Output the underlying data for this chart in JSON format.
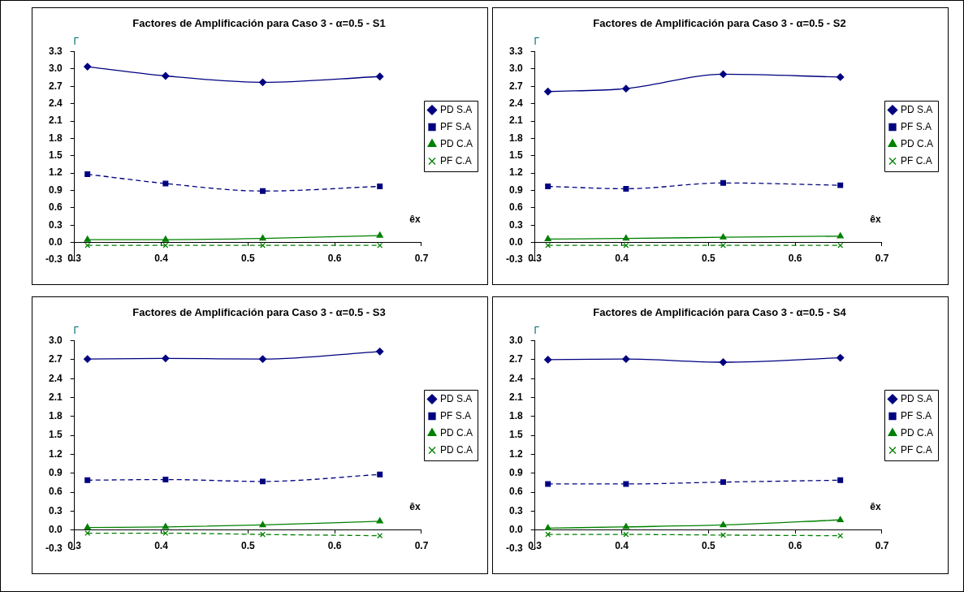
{
  "chart_data": [
    {
      "type": "line",
      "title": "Factores de Amplificación para Caso 3 - α=0.5 - S1",
      "xlabel": "êx",
      "ylabel": "Γ",
      "x": [
        0.315,
        0.405,
        0.517,
        0.652
      ],
      "xlim": [
        0.3,
        0.7
      ],
      "xticks": [
        0.3,
        0.4,
        0.5,
        0.6,
        0.7
      ],
      "ylim": [
        -0.3,
        3.3
      ],
      "yticks": [
        {
          "value": -0.3,
          "label": "-0.3"
        },
        {
          "value": 0,
          "label": "0.0"
        },
        {
          "value": 0.3,
          "label": "0.3"
        },
        {
          "value": 0.6,
          "label": "0.6"
        },
        {
          "value": 0.9,
          "label": "0.9"
        },
        {
          "value": 1.2,
          "label": "1.2"
        },
        {
          "value": 1.5,
          "label": "1.5"
        },
        {
          "value": 1.8,
          "label": "1.8"
        },
        {
          "value": 2.1,
          "label": "2.1"
        },
        {
          "value": 2.4,
          "label": "2.4"
        },
        {
          "value": 2.7,
          "label": "2.7"
        },
        {
          "value": 3.0,
          "label": "3.0"
        },
        {
          "value": 3.3,
          "label": "3.3"
        }
      ],
      "grid": false,
      "legend": "right",
      "series": [
        {
          "name": "PD S.A",
          "color": "#000080",
          "marker": "diamond",
          "line_style": "solid",
          "values": [
            3.04,
            2.88,
            2.77,
            2.87
          ]
        },
        {
          "name": "PF S.A",
          "color": "#000080",
          "marker": "square",
          "line_style": "dashed",
          "values": [
            1.18,
            1.02,
            0.89,
            0.97
          ]
        },
        {
          "name": "PD C.A",
          "color": "#008000",
          "marker": "triangle",
          "line_style": "solid",
          "values": [
            0.05,
            0.05,
            0.07,
            0.12
          ]
        },
        {
          "name": "PF C.A",
          "color": "#008000",
          "marker": "cross",
          "line_style": "dashed",
          "values": [
            -0.05,
            -0.05,
            -0.05,
            -0.05
          ]
        }
      ]
    },
    {
      "type": "line",
      "title": "Factores de Amplificación para Caso 3 - α=0.5 - S2",
      "xlabel": "êx",
      "ylabel": "Γ",
      "x": [
        0.315,
        0.405,
        0.517,
        0.652
      ],
      "xlim": [
        0.3,
        0.7
      ],
      "xticks": [
        0.3,
        0.4,
        0.5,
        0.6,
        0.7
      ],
      "ylim": [
        -0.3,
        3.3
      ],
      "yticks": [
        {
          "value": -0.3,
          "label": "-0.3"
        },
        {
          "value": 0,
          "label": "0.0"
        },
        {
          "value": 0.3,
          "label": "0.3"
        },
        {
          "value": 0.6,
          "label": "0.6"
        },
        {
          "value": 0.9,
          "label": "0.9"
        },
        {
          "value": 1.2,
          "label": "1.2"
        },
        {
          "value": 1.5,
          "label": "1.5"
        },
        {
          "value": 1.8,
          "label": "1.8"
        },
        {
          "value": 2.1,
          "label": "2.1"
        },
        {
          "value": 2.4,
          "label": "2.4"
        },
        {
          "value": 2.7,
          "label": "2.7"
        },
        {
          "value": 3.0,
          "label": "3.0"
        },
        {
          "value": 3.3,
          "label": "3.3"
        }
      ],
      "grid": false,
      "legend": "right",
      "series": [
        {
          "name": "PD S.A",
          "color": "#000080",
          "marker": "diamond",
          "line_style": "solid",
          "values": [
            2.61,
            2.66,
            2.91,
            2.86
          ]
        },
        {
          "name": "PF S.A",
          "color": "#000080",
          "marker": "square",
          "line_style": "dashed",
          "values": [
            0.97,
            0.93,
            1.03,
            0.99
          ]
        },
        {
          "name": "PD C.A",
          "color": "#008000",
          "marker": "triangle",
          "line_style": "solid",
          "values": [
            0.06,
            0.07,
            0.09,
            0.11
          ]
        },
        {
          "name": "PF C.A",
          "color": "#008000",
          "marker": "cross",
          "line_style": "dashed",
          "values": [
            -0.05,
            -0.05,
            -0.05,
            -0.05
          ]
        }
      ]
    },
    {
      "type": "line",
      "title": "Factores de Amplificación para Caso 3 - α=0.5 - S3",
      "xlabel": "êx",
      "ylabel": "Γ",
      "x": [
        0.315,
        0.405,
        0.517,
        0.652
      ],
      "xlim": [
        0.3,
        0.7
      ],
      "xticks": [
        0.3,
        0.4,
        0.5,
        0.6,
        0.7
      ],
      "ylim": [
        -0.3,
        3.0
      ],
      "yticks": [
        {
          "value": -0.3,
          "label": "-0.3"
        },
        {
          "value": 0,
          "label": "0.0"
        },
        {
          "value": 0.3,
          "label": "0.3"
        },
        {
          "value": 0.6,
          "label": "0.6"
        },
        {
          "value": 0.9,
          "label": "0.9"
        },
        {
          "value": 1.2,
          "label": "1.2"
        },
        {
          "value": 1.5,
          "label": "1.5"
        },
        {
          "value": 1.8,
          "label": "1.8"
        },
        {
          "value": 2.1,
          "label": "2.1"
        },
        {
          "value": 2.4,
          "label": "2.4"
        },
        {
          "value": 2.7,
          "label": "2.7"
        },
        {
          "value": 3.0,
          "label": "3.0"
        }
      ],
      "grid": false,
      "legend": "right",
      "series": [
        {
          "name": "PD S.A",
          "color": "#000080",
          "marker": "diamond",
          "line_style": "solid",
          "values": [
            2.71,
            2.72,
            2.71,
            2.83
          ]
        },
        {
          "name": "PF S.A",
          "color": "#000080",
          "marker": "square",
          "line_style": "dashed",
          "values": [
            0.79,
            0.8,
            0.77,
            0.88
          ]
        },
        {
          "name": "PD C.A",
          "color": "#008000",
          "marker": "triangle",
          "line_style": "solid",
          "values": [
            0.04,
            0.05,
            0.08,
            0.14
          ]
        },
        {
          "name": "PD C.A",
          "color": "#008000",
          "marker": "cross",
          "line_style": "dashed",
          "values": [
            -0.05,
            -0.05,
            -0.07,
            -0.09
          ]
        }
      ]
    },
    {
      "type": "line",
      "title": "Factores de Amplificación para Caso 3 - α=0.5 - S4",
      "xlabel": "êx",
      "ylabel": "Γ",
      "x": [
        0.315,
        0.405,
        0.517,
        0.652
      ],
      "xlim": [
        0.3,
        0.7
      ],
      "xticks": [
        0.3,
        0.4,
        0.5,
        0.6,
        0.7
      ],
      "ylim": [
        -0.3,
        3.0
      ],
      "yticks": [
        {
          "value": -0.3,
          "label": "-0.3"
        },
        {
          "value": 0,
          "label": "0.0"
        },
        {
          "value": 0.3,
          "label": "0.3"
        },
        {
          "value": 0.6,
          "label": "0.6"
        },
        {
          "value": 0.9,
          "label": "0.9"
        },
        {
          "value": 1.2,
          "label": "1.2"
        },
        {
          "value": 1.5,
          "label": "1.5"
        },
        {
          "value": 1.8,
          "label": "1.8"
        },
        {
          "value": 2.1,
          "label": "2.1"
        },
        {
          "value": 2.4,
          "label": "2.4"
        },
        {
          "value": 2.7,
          "label": "2.7"
        },
        {
          "value": 3.0,
          "label": "3.0"
        }
      ],
      "grid": false,
      "legend": "right",
      "series": [
        {
          "name": "PD S.A",
          "color": "#000080",
          "marker": "diamond",
          "line_style": "solid",
          "values": [
            2.7,
            2.71,
            2.66,
            2.73
          ]
        },
        {
          "name": "PF S.A",
          "color": "#000080",
          "marker": "square",
          "line_style": "dashed",
          "values": [
            0.73,
            0.73,
            0.76,
            0.79
          ]
        },
        {
          "name": "PD C.A",
          "color": "#008000",
          "marker": "triangle",
          "line_style": "solid",
          "values": [
            0.03,
            0.05,
            0.08,
            0.16
          ]
        },
        {
          "name": "PF C.A",
          "color": "#008000",
          "marker": "cross",
          "line_style": "dashed",
          "values": [
            -0.07,
            -0.07,
            -0.08,
            -0.09
          ]
        }
      ]
    }
  ]
}
